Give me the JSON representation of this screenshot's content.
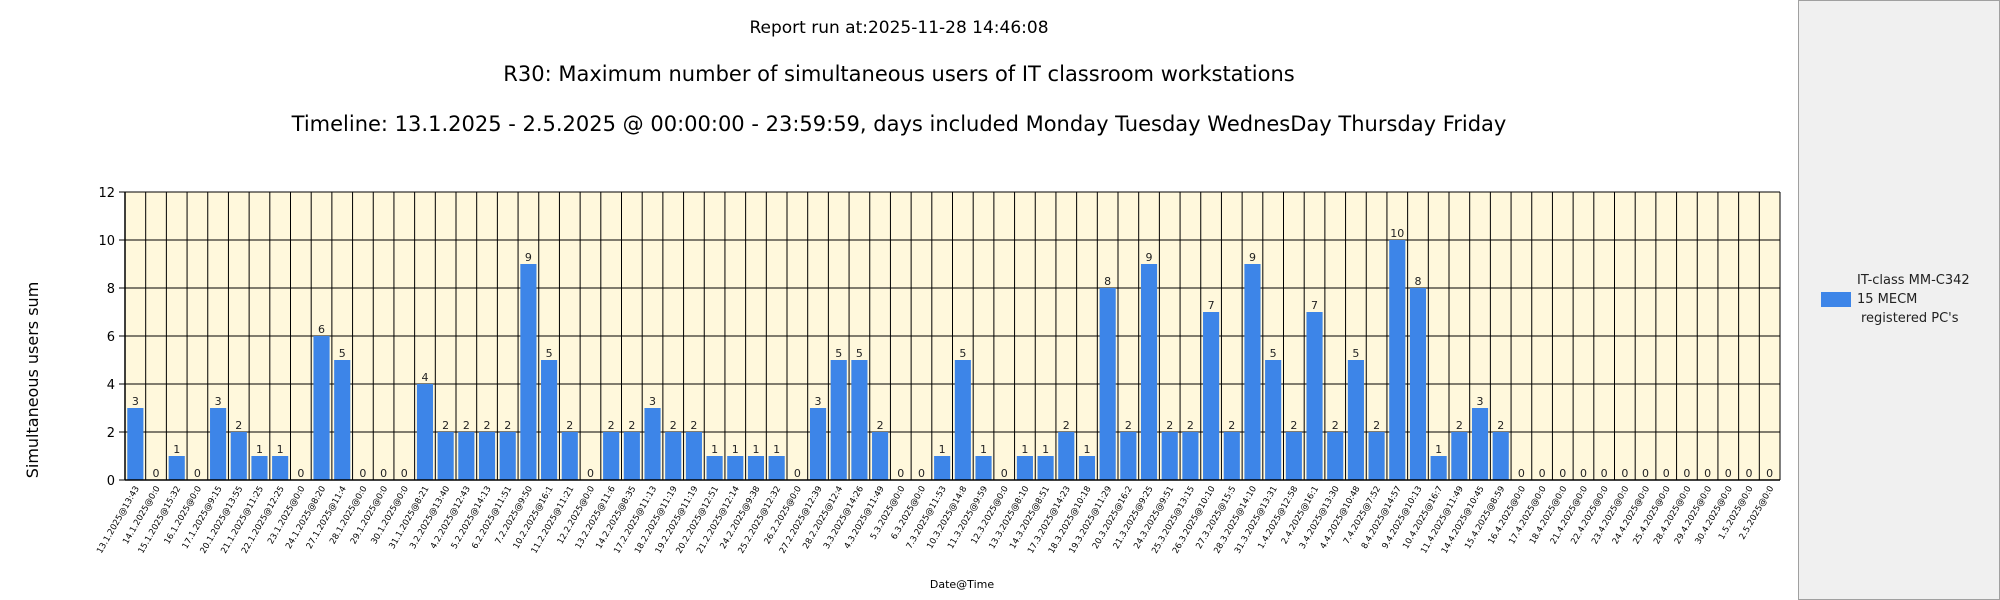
{
  "report_run": "Report run at:2025-11-28 14:46:08",
  "chart_data": {
    "type": "bar",
    "title": "R30: Maximum number of simultaneous users of IT classroom workstations",
    "subtitle": "Timeline: 13.1.2025  - 2.5.2025  @  00:00:00 -  23:59:59, days included Monday Tuesday WednesDay Thursday Friday",
    "xlabel": "Date@Time",
    "ylabel": "Simultaneous users sum",
    "ylim": [
      0,
      12
    ],
    "yticks": [
      0,
      2,
      4,
      6,
      8,
      10,
      12
    ],
    "grid": true,
    "legend_position": "right",
    "categories": [
      "13.1.2025@13:43",
      "14.1.2025@0:0",
      "15.1.2025@15:32",
      "16.1.2025@0:0",
      "17.1.2025@9:15",
      "20.1.2025@13:55",
      "21.1.2025@11:25",
      "22.1.2025@12:25",
      "23.1.2025@0:0",
      "24.1.2025@8:20",
      "27.1.2025@11:4",
      "28.1.2025@0:0",
      "29.1.2025@0:0",
      "30.1.2025@0:0",
      "31.1.2025@8:21",
      "3.2.2025@13:40",
      "4.2.2025@12:43",
      "5.2.2025@14:13",
      "6.2.2025@11:51",
      "7.2.2025@9:50",
      "10.2.2025@16:1",
      "11.2.2025@11:21",
      "12.2.2025@0:0",
      "13.2.2025@11:6",
      "14.2.2025@8:35",
      "17.2.2025@11:13",
      "18.2.2025@11:19",
      "19.2.2025@11:19",
      "20.2.2025@12:51",
      "21.2.2025@12:14",
      "24.2.2025@9:38",
      "25.2.2025@12:32",
      "26.2.2025@0:0",
      "27.2.2025@12:39",
      "28.2.2025@12:4",
      "3.3.2025@14:26",
      "4.3.2025@11:49",
      "5.3.2025@0:0",
      "6.3.2025@0:0",
      "7.3.2025@11:53",
      "10.3.2025@14:8",
      "11.3.2025@9:59",
      "12.3.2025@0:0",
      "13.3.2025@8:10",
      "14.3.2025@8:51",
      "17.3.2025@14:23",
      "18.3.2025@10:18",
      "19.3.2025@11:29",
      "20.3.2025@16:2",
      "21.3.2025@9:25",
      "24.3.2025@9:51",
      "25.3.2025@13:15",
      "26.3.2025@10:10",
      "27.3.2025@15:5",
      "28.3.2025@14:10",
      "31.3.2025@13:31",
      "1.4.2025@12:58",
      "2.4.2025@16:1",
      "3.4.2025@13:30",
      "4.4.2025@10:48",
      "7.4.2025@7:52",
      "8.4.2025@14:57",
      "9.4.2025@10:13",
      "10.4.2025@16:7",
      "11.4.2025@11:49",
      "14.4.2025@10:45",
      "15.4.2025@8:59",
      "16.4.2025@0:0",
      "17.4.2025@0:0",
      "18.4.2025@0:0",
      "21.4.2025@0:0",
      "22.4.2025@0:0",
      "23.4.2025@0:0",
      "24.4.2025@0:0",
      "25.4.2025@0:0",
      "28.4.2025@0:0",
      "29.4.2025@0:0",
      "30.4.2025@0:0",
      "1.5.2025@0:0",
      "2.5.2025@0:0"
    ],
    "series": [
      {
        "name": "IT-class MM-C342 15 MECM registered PC's",
        "color": "#3d85e8",
        "values": [
          3,
          0,
          1,
          0,
          3,
          2,
          1,
          1,
          0,
          6,
          5,
          0,
          0,
          0,
          4,
          2,
          2,
          2,
          2,
          9,
          5,
          2,
          0,
          2,
          2,
          3,
          2,
          2,
          1,
          1,
          1,
          1,
          0,
          3,
          5,
          5,
          2,
          0,
          0,
          1,
          5,
          1,
          0,
          1,
          1,
          2,
          1,
          8,
          2,
          9,
          2,
          2,
          7,
          2,
          9,
          5,
          2,
          7,
          2,
          5,
          2,
          10,
          8,
          1,
          2,
          3,
          2,
          0,
          0,
          0,
          0,
          0,
          0,
          0,
          0,
          0,
          0,
          0,
          0,
          0
        ]
      }
    ],
    "legend_lines": [
      "IT-class MM-C342",
      "15 MECM",
      "registered PC's"
    ],
    "colors": {
      "plot_background": "#fff8dc",
      "bar": "#3d85e8"
    }
  }
}
